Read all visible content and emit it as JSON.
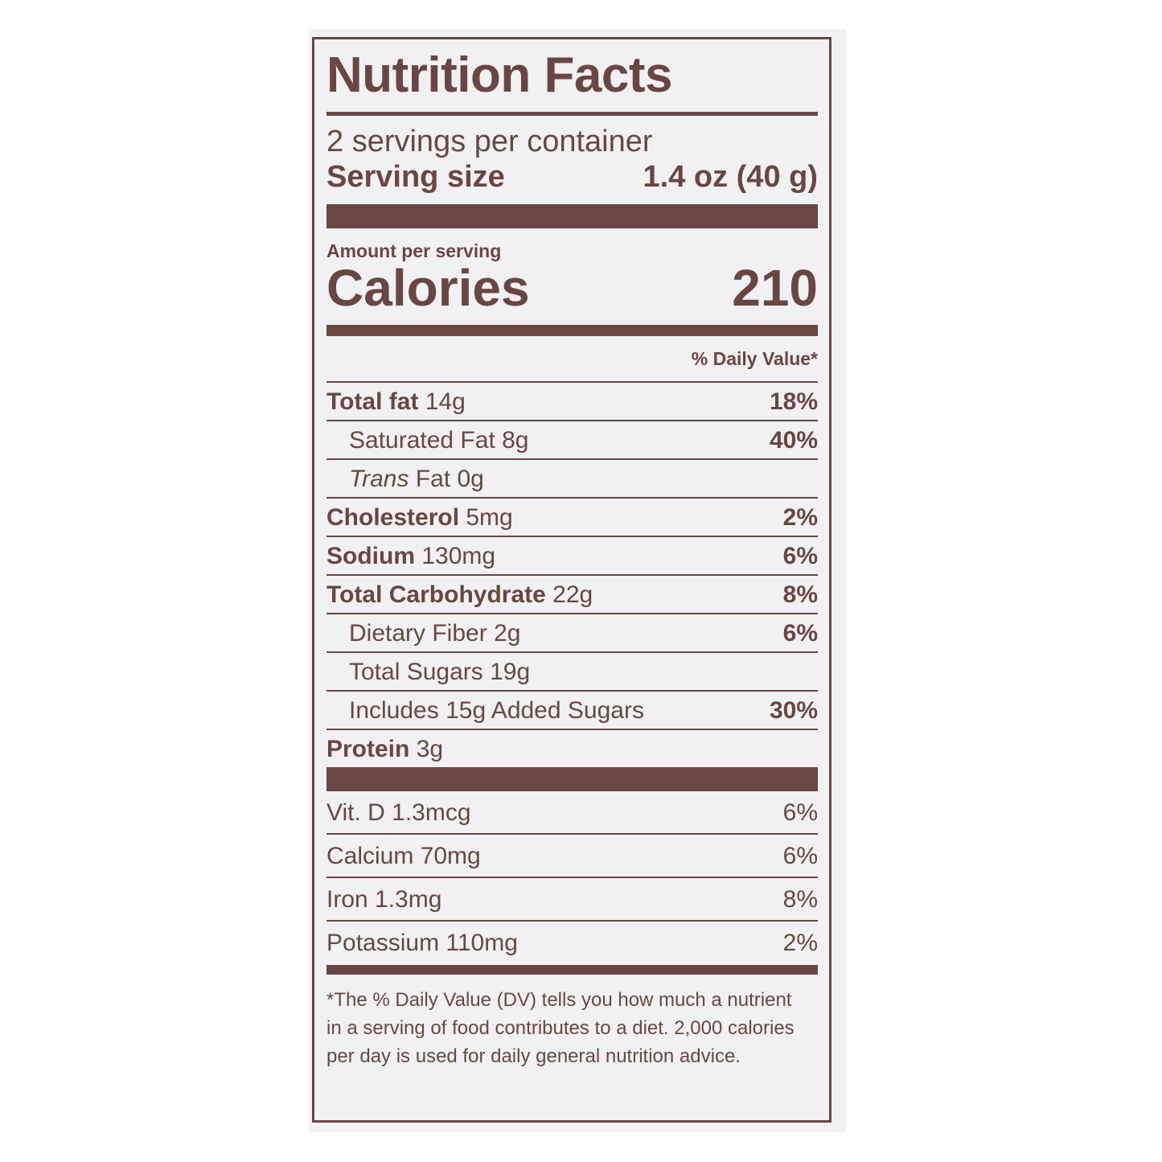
{
  "title": "Nutrition Facts",
  "servings_per_container": "2 servings per container",
  "serving_size": {
    "label": "Serving size",
    "value": "1.4 oz (40 g)"
  },
  "amount_per_serving": "Amount per serving",
  "calories": {
    "label": "Calories",
    "value": "210"
  },
  "daily_value_header": "% Daily Value*",
  "nutrients": [
    {
      "name": "Total fat",
      "amount": "14g",
      "dv": "18%"
    },
    {
      "name": "Saturated Fat",
      "amount": "8g",
      "dv": "40%"
    },
    {
      "name": "Trans",
      "amount": "Fat 0g",
      "dv": ""
    },
    {
      "name": "Cholesterol",
      "amount": "5mg",
      "dv": "2%"
    },
    {
      "name": "Sodium",
      "amount": "130mg",
      "dv": "6%"
    },
    {
      "name": "Total Carbohydrate",
      "amount": "22g",
      "dv": "8%"
    },
    {
      "name": "Dietary Fiber",
      "amount": "2g",
      "dv": "6%"
    },
    {
      "name": "Total Sugars",
      "amount": "19g",
      "dv": ""
    },
    {
      "name": "Includes 15g Added Sugars",
      "amount": "",
      "dv": "30%"
    },
    {
      "name": "Protein",
      "amount": "3g",
      "dv": ""
    }
  ],
  "vitamins": [
    {
      "name": "Vit. D 1.3mcg",
      "dv": "6%"
    },
    {
      "name": "Calcium 70mg",
      "dv": "6%"
    },
    {
      "name": "Iron 1.3mg",
      "dv": "8%"
    },
    {
      "name": "Potassium 110mg",
      "dv": "2%"
    }
  ],
  "footnote": "*The % Daily Value (DV) tells you how much a nutrient in a serving of food contributes to a diet. 2,000 calories per day is used for daily general nutrition advice.",
  "colors": {
    "ink": "#6a4642",
    "paper": "#f1f1f3"
  }
}
